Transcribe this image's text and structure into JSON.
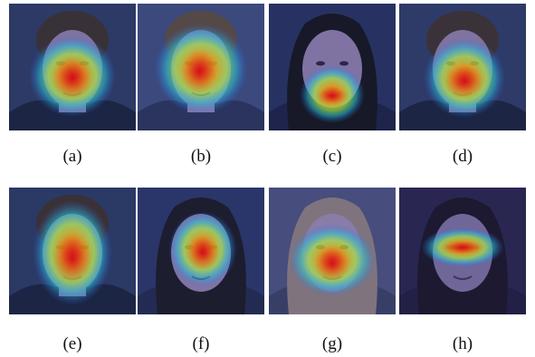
{
  "panels": [
    {
      "caption": "(a)",
      "subject": "man",
      "bg": "#2c3a5e",
      "hair": "#3a2f2a",
      "skin": "#8a7aa0",
      "suit": "#1a2238",
      "heat": [
        {
          "cx": 70,
          "cy": 80,
          "rx": 48,
          "ry": 45
        }
      ],
      "core": [
        {
          "cx": 70,
          "cy": 82,
          "rx": 22,
          "ry": 24
        }
      ]
    },
    {
      "caption": "(b)",
      "subject": "man-glasses",
      "bg": "#3d4a78",
      "hair": "#5a4a3c",
      "skin": "#8f80a8",
      "suit": "#2a3356",
      "heat": [
        {
          "cx": 70,
          "cy": 72,
          "rx": 52,
          "ry": 50
        }
      ],
      "core": [
        {
          "cx": 68,
          "cy": 75,
          "rx": 20,
          "ry": 24
        }
      ]
    },
    {
      "caption": "(c)",
      "subject": "woman-dark-hair",
      "bg": "#26305a",
      "hair": "#141418",
      "skin": "#8b7aa5",
      "suit": "#1c2040",
      "heat": [
        {
          "cx": 70,
          "cy": 100,
          "rx": 36,
          "ry": 32
        }
      ],
      "core": [
        {
          "cx": 70,
          "cy": 102,
          "rx": 18,
          "ry": 10
        }
      ]
    },
    {
      "caption": "(d)",
      "subject": "man",
      "bg": "#2e3b62",
      "hair": "#3c302b",
      "skin": "#8a7aa0",
      "suit": "#1a2238",
      "heat": [
        {
          "cx": 72,
          "cy": 82,
          "rx": 45,
          "ry": 44
        }
      ],
      "core": [
        {
          "cx": 72,
          "cy": 86,
          "rx": 22,
          "ry": 18
        }
      ]
    },
    {
      "caption": "(e)",
      "subject": "man",
      "bg": "#2b385e",
      "hair": "#3b2f29",
      "skin": "#8a7aa0",
      "suit": "#1a2238",
      "heat": [
        {
          "cx": 70,
          "cy": 72,
          "rx": 44,
          "ry": 58
        }
      ],
      "core": [
        {
          "cx": 70,
          "cy": 78,
          "rx": 22,
          "ry": 28
        }
      ]
    },
    {
      "caption": "(f)",
      "subject": "woman-dark-hair",
      "bg": "#293563",
      "hair": "#1a1820",
      "skin": "#8c7ca6",
      "suit": "#222848",
      "heat": [
        {
          "cx": 72,
          "cy": 68,
          "rx": 38,
          "ry": 42
        }
      ],
      "core": [
        {
          "cx": 72,
          "cy": 72,
          "rx": 18,
          "ry": 20
        }
      ]
    },
    {
      "caption": "(g)",
      "subject": "woman-blonde",
      "bg": "#4a4f78",
      "hair": "#8a7c7a",
      "skin": "#9685ab",
      "suit": "#3a3f60",
      "heat": [
        {
          "cx": 70,
          "cy": 80,
          "rx": 48,
          "ry": 40
        }
      ],
      "core": [
        {
          "cx": 70,
          "cy": 84,
          "rx": 20,
          "ry": 20
        }
      ]
    },
    {
      "caption": "(h)",
      "subject": "woman-curly",
      "bg": "#2a2348",
      "hair": "#1a1422",
      "skin": "#7a6c98",
      "suit": "#221c3a",
      "heat": [
        {
          "cx": 70,
          "cy": 66,
          "rx": 46,
          "ry": 22
        }
      ],
      "core": [
        {
          "cx": 70,
          "cy": 66,
          "rx": 24,
          "ry": 8
        }
      ]
    }
  ]
}
